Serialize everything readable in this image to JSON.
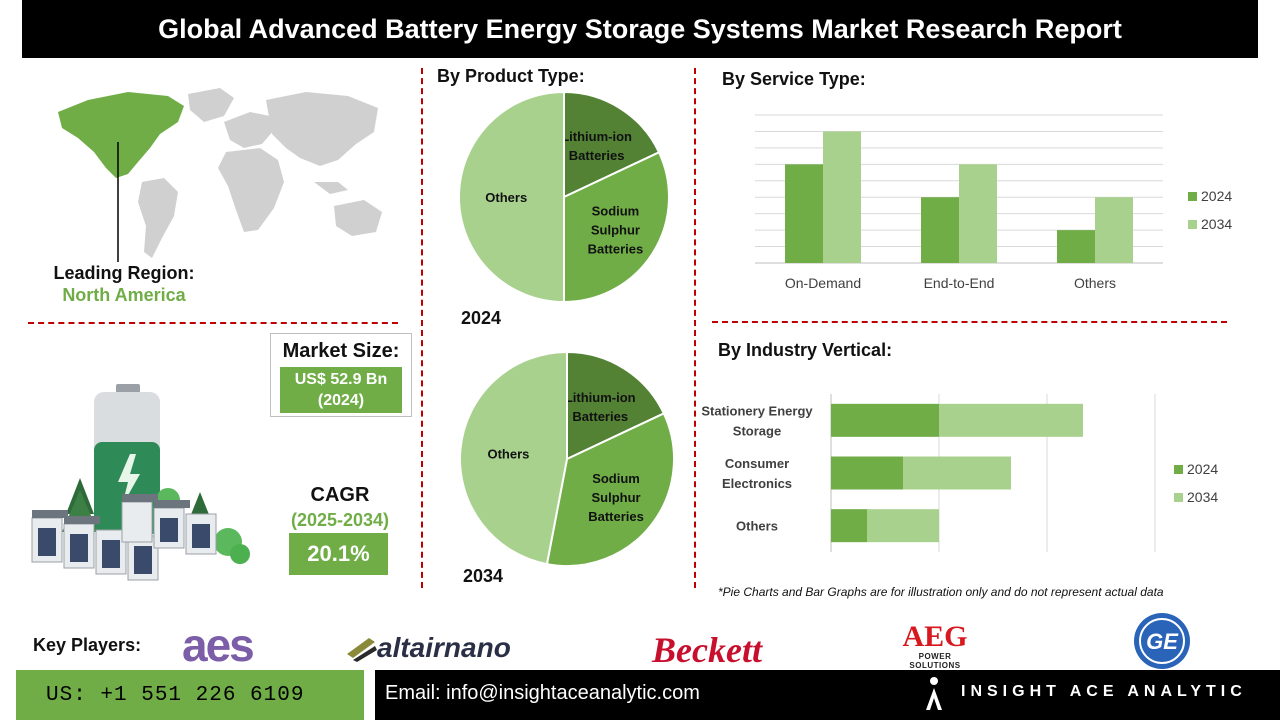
{
  "title": "Global Advanced Battery Energy Storage Systems Market Research Report",
  "region": {
    "label": "Leading Region:",
    "value": "North America"
  },
  "market_size": {
    "label": "Market Size:",
    "value_line1": "US$ 52.9 Bn",
    "value_line2": "(2024)"
  },
  "cagr": {
    "label": "CAGR",
    "years": "(2025-2034)",
    "value": "20.1%"
  },
  "product_section": {
    "title": "By Product Type:"
  },
  "service_section": {
    "title": "By Service Type:"
  },
  "industry_section": {
    "title": "By Industry Vertical:"
  },
  "note": "*Pie Charts and Bar Graphs are for illustration only and do not represent actual data",
  "key_players": {
    "label": "Key Players:",
    "logos": [
      "aes",
      "altairnano",
      "Beckett",
      "AEG",
      "POWER SOLUTIONS",
      "GE"
    ]
  },
  "footer": {
    "phone": "US: +1 551 226 6109",
    "email": "Email: info@insightaceanalytic.com",
    "brand": "INSIGHT ACE ANALYTIC"
  },
  "colors": {
    "dark_green": "#5a9a3a",
    "mid_green": "#70ad47",
    "light_green": "#a9d18e",
    "accent_red": "#c00000"
  },
  "chart_data": [
    {
      "type": "pie",
      "year_label": "2024",
      "labels": [
        "Lithium-ion Batteries",
        "Sodium Sulphur Batteries",
        "Others"
      ],
      "label_lines": [
        [
          "Lithium-ion",
          "Batteries"
        ],
        [
          "Sodium",
          "Sulphur",
          "Batteries"
        ],
        [
          "Others"
        ]
      ],
      "values": [
        18,
        32,
        50
      ],
      "colors": [
        "#548235",
        "#70ad47",
        "#a9d18e"
      ]
    },
    {
      "type": "pie",
      "year_label": "2034",
      "labels": [
        "Lithium-ion Batteries",
        "Sodium Sulphur Batteries",
        "Others"
      ],
      "label_lines": [
        [
          "Lithium-ion",
          "Batteries"
        ],
        [
          "Sodium",
          "Sulphur",
          "Batteries"
        ],
        [
          "Others"
        ]
      ],
      "values": [
        18,
        35,
        47
      ],
      "colors": [
        "#548235",
        "#70ad47",
        "#a9d18e"
      ]
    },
    {
      "type": "bar",
      "orientation": "vertical",
      "categories": [
        "On-Demand",
        "End-to-End",
        "Others"
      ],
      "series": [
        {
          "name": "2024",
          "values": [
            6,
            4,
            2
          ],
          "color": "#70ad47"
        },
        {
          "name": "2034",
          "values": [
            8,
            6,
            4
          ],
          "color": "#a9d18e"
        }
      ],
      "ylim": [
        0,
        9
      ],
      "grid": true,
      "legend": "right"
    },
    {
      "type": "bar",
      "orientation": "horizontal",
      "stacked": true,
      "categories": [
        "Stationery Energy Storage",
        "Consumer Electronics",
        "Others"
      ],
      "category_lines": [
        [
          "Stationery Energy",
          "Storage"
        ],
        [
          "Consumer",
          "Electronics"
        ],
        [
          "Others"
        ]
      ],
      "series": [
        {
          "name": "2024",
          "values": [
            3,
            2,
            1
          ],
          "color": "#70ad47"
        },
        {
          "name": "2034",
          "values": [
            4,
            3,
            2
          ],
          "color": "#a9d18e"
        }
      ],
      "xlim": [
        0,
        9
      ],
      "grid": true,
      "legend": "right"
    }
  ]
}
